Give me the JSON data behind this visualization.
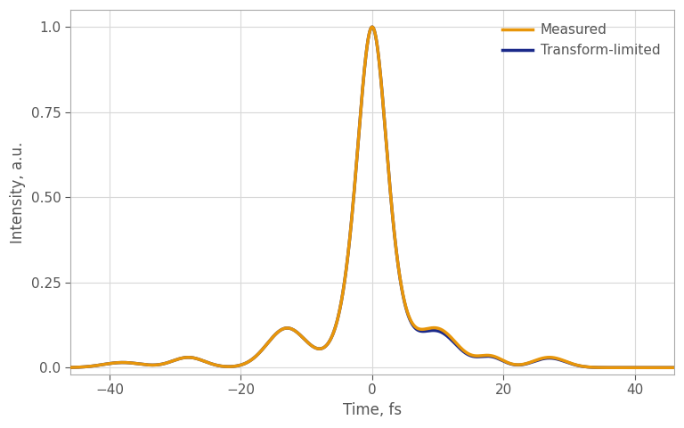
{
  "xlabel": "Time, fs",
  "ylabel": "Intensity, a.u.",
  "xlim": [
    -46,
    46
  ],
  "ylim": [
    -0.02,
    1.05
  ],
  "yticks": [
    0.0,
    0.25,
    0.5,
    0.75,
    1.0
  ],
  "xticks": [
    -40,
    -20,
    0,
    20,
    40
  ],
  "measured_color": "#E8960A",
  "tl_color": "#1B2A8A",
  "measured_label": "Measured",
  "tl_label": "Transform-limited",
  "background_color": "#FFFFFF",
  "grid_color": "#D8D8D8",
  "measured_lw": 2.5,
  "tl_lw": 2.5
}
